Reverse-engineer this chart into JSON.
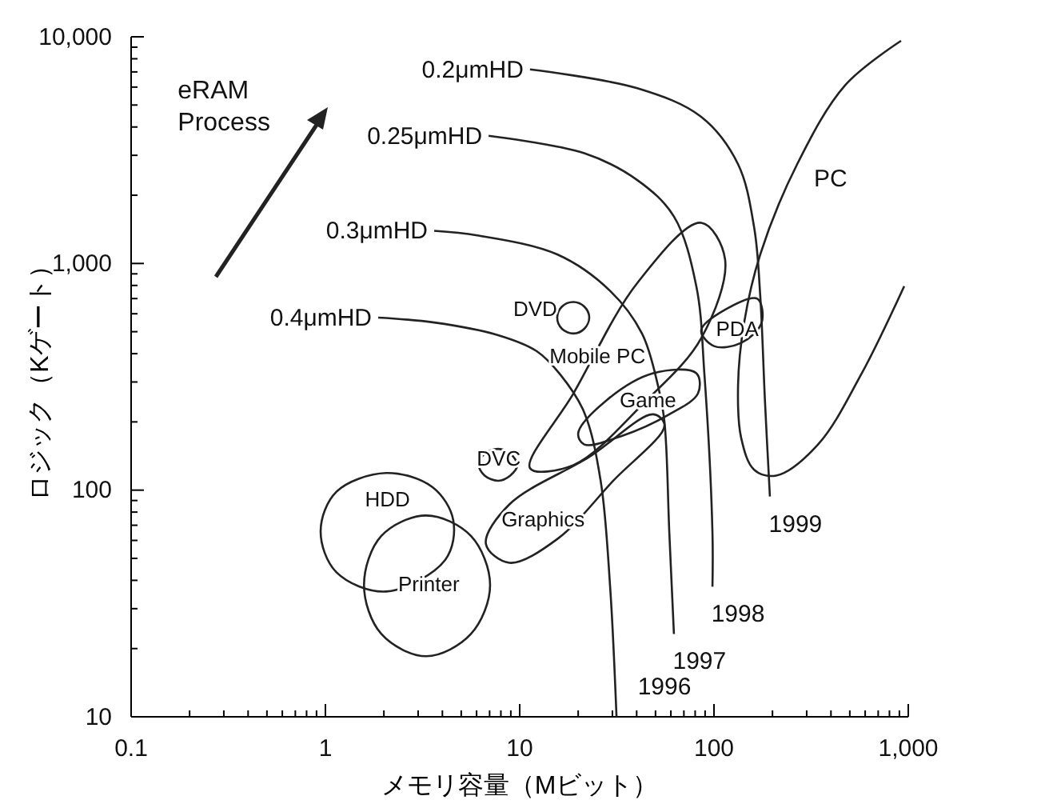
{
  "chart_data": {
    "type": "line",
    "xlabel": "メモリ容量（Mビット）",
    "ylabel": "ロジック（Kゲート）",
    "log": "xy",
    "grid": false,
    "legend": false,
    "marker": "none",
    "line_style": "solid",
    "xlim": [
      0.1,
      1000
    ],
    "ylim": [
      10,
      10000
    ],
    "xticks": [
      0.1,
      {
        "value": 0.2,
        "label": null
      },
      {
        "value": 0.3,
        "label": null
      },
      {
        "value": 0.4,
        "label": null
      },
      {
        "value": 0.5,
        "label": null
      },
      {
        "value": 0.6,
        "label": null
      },
      {
        "value": 0.7,
        "label": null
      },
      {
        "value": 0.8,
        "label": null
      },
      {
        "value": 0.9,
        "label": null
      },
      1,
      {
        "value": 2,
        "label": null
      },
      {
        "value": 3,
        "label": null
      },
      {
        "value": 4,
        "label": null
      },
      {
        "value": 5,
        "label": null
      },
      {
        "value": 6,
        "label": null
      },
      {
        "value": 7,
        "label": null
      },
      {
        "value": 8,
        "label": null
      },
      {
        "value": 9,
        "label": null
      },
      10,
      {
        "value": 20,
        "label": null
      },
      {
        "value": 30,
        "label": null
      },
      {
        "value": 40,
        "label": null
      },
      {
        "value": 50,
        "label": null
      },
      {
        "value": 60,
        "label": null
      },
      {
        "value": 70,
        "label": null
      },
      {
        "value": 80,
        "label": null
      },
      {
        "value": 90,
        "label": null
      },
      100,
      {
        "value": 200,
        "label": null
      },
      {
        "value": 300,
        "label": null
      },
      {
        "value": 400,
        "label": null
      },
      {
        "value": 500,
        "label": null
      },
      {
        "value": 600,
        "label": null
      },
      {
        "value": 700,
        "label": null
      },
      {
        "value": 800,
        "label": null
      },
      {
        "value": 900,
        "label": null
      },
      {
        "value": 1000,
        "label": "1,000"
      }
    ],
    "yticks": [
      10,
      {
        "value": 20,
        "label": null
      },
      {
        "value": 30,
        "label": null
      },
      {
        "value": 40,
        "label": null
      },
      {
        "value": 50,
        "label": null
      },
      {
        "value": 60,
        "label": null
      },
      {
        "value": 70,
        "label": null
      },
      {
        "value": 80,
        "label": null
      },
      {
        "value": 90,
        "label": null
      },
      100,
      {
        "value": 200,
        "label": null
      },
      {
        "value": 300,
        "label": null
      },
      {
        "value": 400,
        "label": null
      },
      {
        "value": 500,
        "label": null
      },
      {
        "value": 600,
        "label": null
      },
      {
        "value": 700,
        "label": null
      },
      {
        "value": 800,
        "label": null
      },
      {
        "value": 900,
        "label": null
      },
      {
        "value": 1000,
        "label": "1,000"
      },
      {
        "value": 2000,
        "label": null
      },
      {
        "value": 3000,
        "label": null
      },
      {
        "value": 4000,
        "label": null
      },
      {
        "value": 5000,
        "label": null
      },
      {
        "value": 6000,
        "label": null
      },
      {
        "value": 7000,
        "label": null
      },
      {
        "value": 8000,
        "label": null
      },
      {
        "value": 9000,
        "label": null
      },
      {
        "value": 10000,
        "label": "10,000"
      }
    ],
    "series": [
      {
        "name": "0.2μmHD",
        "color": "#222222",
        "x": [
          11.3,
          40.3,
          85.9,
          133,
          161,
          173,
          183,
          194
        ],
        "values": [
          7180,
          5929,
          4436,
          2741,
          1439,
          721,
          246,
          93.7
        ]
      },
      {
        "name": "0.25μmHD",
        "color": "#222222",
        "x": [
          6.92,
          21.5,
          40.3,
          62.2,
          81.1,
          89.3,
          98.2,
          98.2
        ],
        "values": [
          3656,
          3064,
          2333,
          1612,
          794,
          323,
          65,
          37.5
        ]
      },
      {
        "name": "0.3μmHD",
        "color": "#222222",
        "x": [
          3.63,
          6.05,
          15.6,
          29.2,
          42.6,
          51.5,
          55.6,
          58.9,
          62.2
        ],
        "values": [
          1394,
          1330,
          1096,
          757,
          491,
          289,
          200,
          64.8,
          23.2
        ]
      },
      {
        "name": "0.4μmHD",
        "color": "#222222",
        "x": [
          1.87,
          3.63,
          7.74,
          12.2,
          16.2,
          21.5,
          26.1,
          29.2,
          31.5
        ],
        "values": [
          577,
          549,
          483,
          411,
          323,
          220,
          110,
          37.5,
          10
        ]
      },
      {
        "color": "#222222",
        "x": [
          918,
          473,
          268,
          173,
          143,
          133,
          138,
          161,
          209,
          343,
          571,
          953
        ],
        "values": [
          9600,
          6110,
          2741,
          1096,
          549,
          289,
          170,
          123,
          116,
          159,
          323,
          794
        ]
      }
    ],
    "annotations": [
      "eRAM Process",
      "PC",
      "PDA",
      "DVD",
      "Mobile PC",
      "Game",
      "DVC",
      "Graphics",
      "HDD",
      "Printer",
      {
        "text": "1996",
        "x": 31.5,
        "y": 10
      },
      {
        "text": "1997",
        "x": 62.2,
        "y": 23.2
      },
      {
        "text": "1998",
        "x": 98.2,
        "y": 37.5
      },
      {
        "text": "1999",
        "x": 194,
        "y": 93.7
      }
    ]
  }
}
